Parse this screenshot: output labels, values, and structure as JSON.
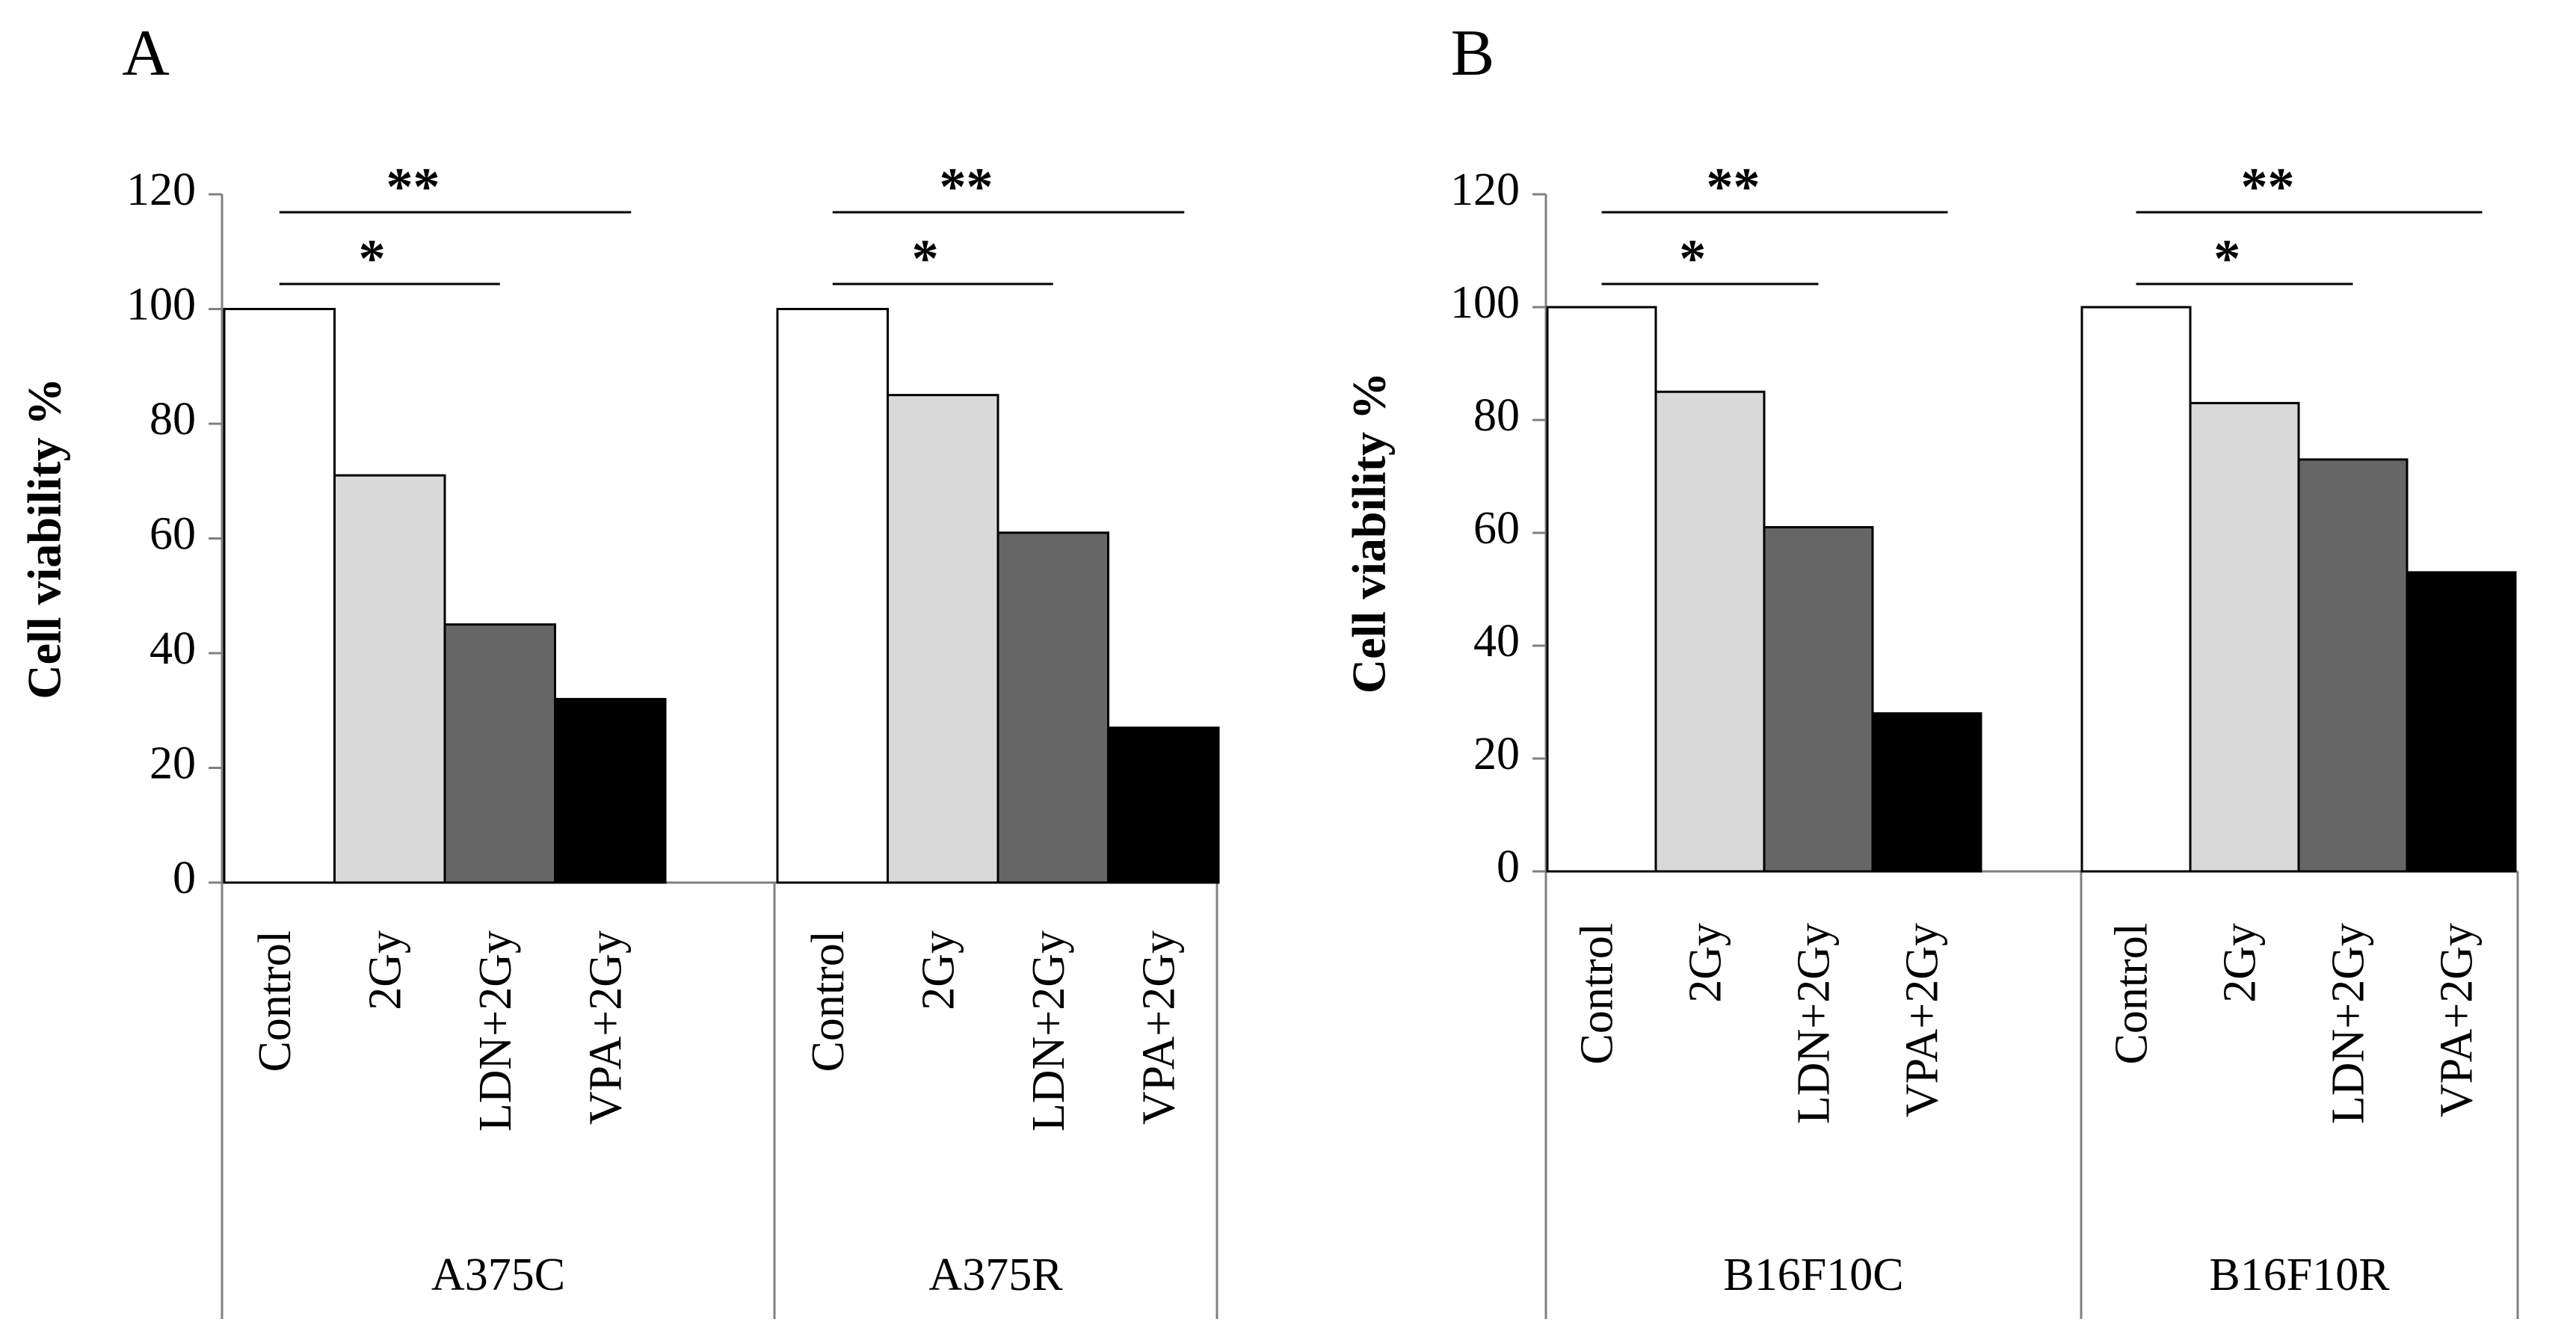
{
  "chart_data": [
    {
      "type": "bar",
      "panel": "A",
      "ylabel": "Cell viability %",
      "ylim": [
        0,
        120
      ],
      "yticks": [
        0,
        20,
        40,
        60,
        80,
        100,
        120
      ],
      "categories": [
        "Control",
        "2Gy",
        "LDN+2Gy",
        "VPA+2Gy"
      ],
      "colors": [
        "#ffffff",
        "#d9d9d9",
        "#666666",
        "#000000"
      ],
      "groups": [
        {
          "name": "A375C",
          "values": [
            100,
            71,
            45,
            32
          ]
        },
        {
          "name": "A375R",
          "values": [
            100,
            85,
            61,
            27
          ]
        }
      ],
      "annotations": [
        {
          "group": 0,
          "from": 0,
          "to": 3,
          "label": "**",
          "level": "upper"
        },
        {
          "group": 0,
          "from": 0,
          "to": 2,
          "label": "*",
          "level": "lower"
        },
        {
          "group": 1,
          "from": 0,
          "to": 3,
          "label": "**",
          "level": "upper"
        },
        {
          "group": 1,
          "from": 0,
          "to": 2,
          "label": "*",
          "level": "lower"
        }
      ]
    },
    {
      "type": "bar",
      "panel": "B",
      "ylabel": "Cell viability %",
      "ylim": [
        0,
        120
      ],
      "yticks": [
        0,
        20,
        40,
        60,
        80,
        100,
        120
      ],
      "categories": [
        "Control",
        "2Gy",
        "LDN+2Gy",
        "VPA+2Gy"
      ],
      "colors": [
        "#ffffff",
        "#d9d9d9",
        "#666666",
        "#000000"
      ],
      "groups": [
        {
          "name": "B16F10C",
          "values": [
            100,
            85,
            61,
            28
          ]
        },
        {
          "name": "B16F10R",
          "values": [
            100,
            83,
            73,
            53
          ]
        }
      ],
      "annotations": [
        {
          "group": 0,
          "from": 0,
          "to": 3,
          "label": "**",
          "level": "upper"
        },
        {
          "group": 0,
          "from": 0,
          "to": 2,
          "label": "*",
          "level": "lower"
        },
        {
          "group": 1,
          "from": 0,
          "to": 3,
          "label": "**",
          "level": "upper"
        },
        {
          "group": 1,
          "from": 0,
          "to": 2,
          "label": "*",
          "level": "lower"
        }
      ]
    }
  ]
}
